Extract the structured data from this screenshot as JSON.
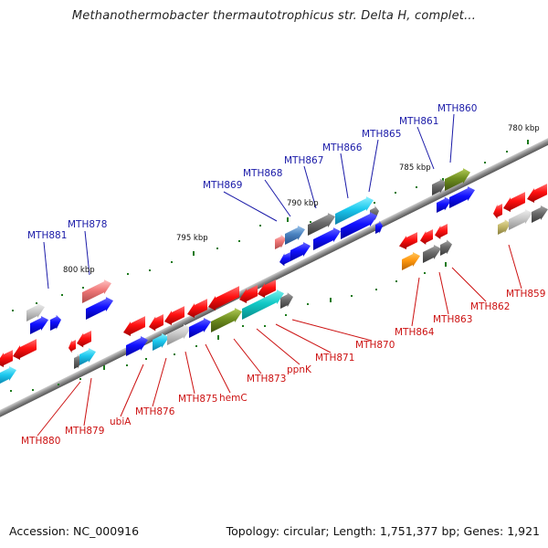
{
  "title": "Methanothermobacter thermautotrophicus str. Delta H, complet...",
  "footer": {
    "accession": "Accession: NC_000916",
    "topology": "Topology: circular; Length: 1,751,377 bp; Genes: 1,921"
  },
  "scale_labels": [
    "780 kbp",
    "785 kbp",
    "790 kbp",
    "795 kbp",
    "800 kbp"
  ],
  "top_labels": [
    "MTH860",
    "MTH861",
    "MTH865",
    "MTH866",
    "MTH867",
    "MTH868",
    "MTH869",
    "MTH878",
    "MTH881"
  ],
  "bottom_labels": [
    "MTH859",
    "MTH862",
    "MTH863",
    "MTH864",
    "MTH870",
    "MTH871",
    "ppnK",
    "MTH873",
    "hemC",
    "MTH875",
    "MTH876",
    "ubiA",
    "MTH879",
    "MTH880"
  ],
  "colors": {
    "top_label": "#1a1aa8",
    "bottom_label": "#cc1111",
    "backbone": "#8a8a8a",
    "tick": "#1c7a1c"
  }
}
